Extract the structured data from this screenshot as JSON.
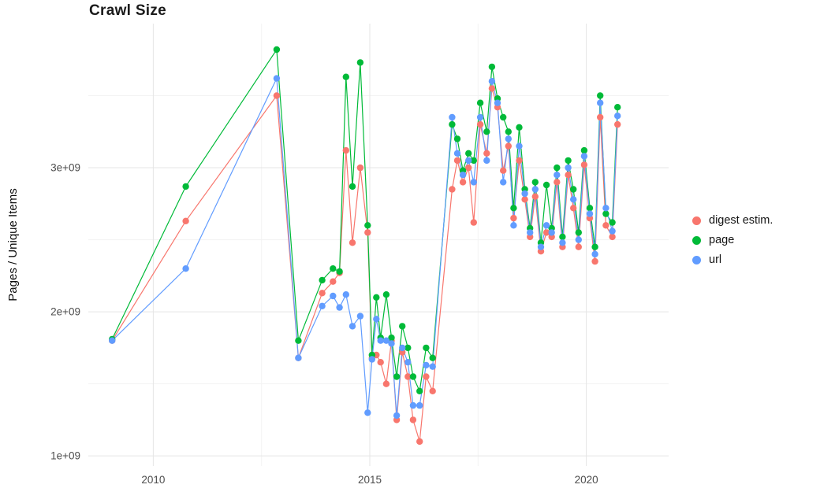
{
  "chart_data": {
    "type": "line",
    "title": "Crawl Size",
    "xlabel": "",
    "ylabel": "Pages / Unique Items",
    "y_unit": "1e+09",
    "grid": true,
    "background_color": "#ffffff",
    "grid_major_color": "#e5e5e5",
    "grid_minor_color": "#f3f3f3",
    "tick_label_color": "#4d4d4d",
    "legend_position": "right",
    "xlim": [
      2008.5,
      2021.9
    ],
    "ylim": [
      0.93,
      4.0
    ],
    "xticks": [
      2010,
      2015,
      2020
    ],
    "xtick_labels": [
      "2010",
      "2015",
      "2020"
    ],
    "xticks_minor": [
      2012.5,
      2017.5
    ],
    "yticks": [
      1,
      2,
      3
    ],
    "ytick_labels": [
      "1e+09",
      "2e+09",
      "3e+09"
    ],
    "yticks_minor": [
      1.5,
      2.5,
      3.5
    ],
    "x": [
      2009.05,
      2010.75,
      2012.85,
      2013.35,
      2013.9,
      2014.15,
      2014.3,
      2014.45,
      2014.6,
      2014.78,
      2014.95,
      2015.05,
      2015.15,
      2015.25,
      2015.38,
      2015.5,
      2015.62,
      2015.75,
      2015.88,
      2016.0,
      2016.15,
      2016.3,
      2016.45,
      2016.9,
      2017.02,
      2017.15,
      2017.28,
      2017.4,
      2017.55,
      2017.7,
      2017.82,
      2017.95,
      2018.08,
      2018.2,
      2018.32,
      2018.45,
      2018.58,
      2018.7,
      2018.82,
      2018.95,
      2019.08,
      2019.2,
      2019.32,
      2019.45,
      2019.58,
      2019.7,
      2019.82,
      2019.95,
      2020.08,
      2020.2,
      2020.32,
      2020.45,
      2020.6,
      2020.72
    ],
    "series": [
      {
        "id": "digest",
        "name": "digest estim.",
        "color": "#F8766D",
        "values": [
          1.8,
          2.63,
          3.5,
          1.68,
          2.13,
          2.21,
          2.27,
          3.12,
          2.48,
          3.0,
          2.55,
          1.68,
          1.7,
          1.65,
          1.5,
          1.8,
          1.25,
          1.72,
          1.55,
          1.25,
          1.1,
          1.55,
          1.45,
          2.85,
          3.05,
          2.9,
          3.0,
          2.62,
          3.3,
          3.1,
          3.55,
          3.42,
          2.98,
          3.15,
          2.65,
          3.05,
          2.78,
          2.52,
          2.8,
          2.42,
          2.55,
          2.52,
          2.9,
          2.45,
          2.95,
          2.72,
          2.45,
          3.02,
          2.65,
          2.35,
          3.35,
          2.6,
          2.52,
          3.3
        ]
      },
      {
        "id": "page",
        "name": "page",
        "color": "#00BA38",
        "values": [
          1.81,
          2.87,
          3.82,
          1.8,
          2.22,
          2.3,
          2.28,
          3.63,
          2.87,
          3.73,
          2.6,
          1.7,
          2.1,
          1.82,
          2.12,
          1.82,
          1.55,
          1.9,
          1.75,
          1.55,
          1.45,
          1.75,
          1.68,
          3.3,
          3.2,
          2.98,
          3.1,
          3.05,
          3.45,
          3.25,
          3.7,
          3.48,
          3.35,
          3.25,
          2.72,
          3.28,
          2.85,
          2.58,
          2.9,
          2.48,
          2.88,
          2.58,
          3.0,
          2.52,
          3.05,
          2.85,
          2.55,
          3.12,
          2.72,
          2.45,
          3.5,
          2.68,
          2.62,
          3.42
        ]
      },
      {
        "id": "url",
        "name": "url",
        "color": "#619CFF",
        "values": [
          1.8,
          2.3,
          3.62,
          1.68,
          2.04,
          2.11,
          2.03,
          2.12,
          1.9,
          1.97,
          1.3,
          1.67,
          1.95,
          1.8,
          1.8,
          1.78,
          1.28,
          1.75,
          1.65,
          1.35,
          1.35,
          1.63,
          1.62,
          3.35,
          3.1,
          2.95,
          3.05,
          2.9,
          3.35,
          3.05,
          3.6,
          3.45,
          2.9,
          3.2,
          2.6,
          3.15,
          2.82,
          2.55,
          2.85,
          2.45,
          2.6,
          2.55,
          2.95,
          2.48,
          3.0,
          2.78,
          2.5,
          3.08,
          2.68,
          2.4,
          3.45,
          2.72,
          2.56,
          3.36
        ]
      }
    ]
  }
}
